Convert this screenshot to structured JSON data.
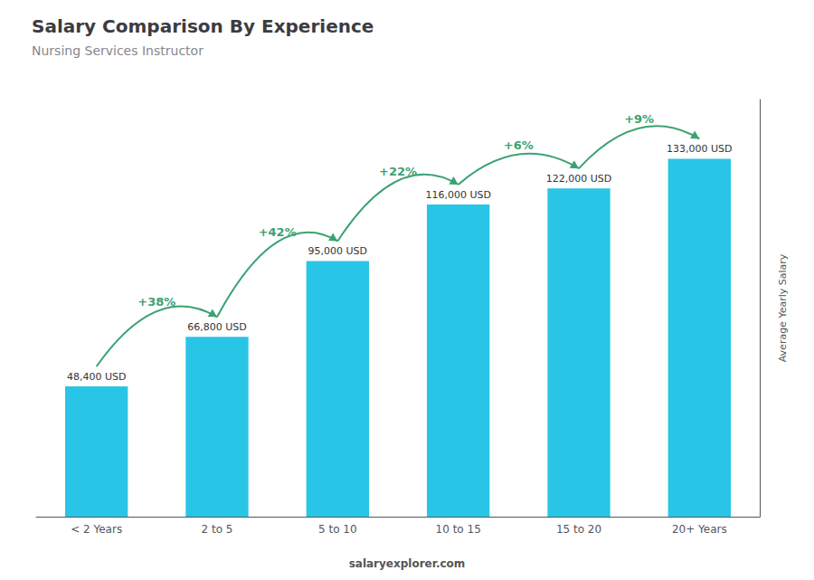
{
  "chart_data": {
    "type": "bar",
    "title": "Salary Comparison By Experience",
    "subtitle": "Nursing Services Instructor",
    "categories": [
      "< 2 Years",
      "2 to 5",
      "5 to 10",
      "10 to 15",
      "15 to 20",
      "20+ Years"
    ],
    "values": [
      48400,
      66800,
      95000,
      116000,
      122000,
      133000
    ],
    "value_labels": [
      "48,400 USD",
      "66,800 USD",
      "95,000 USD",
      "116,000 USD",
      "122,000 USD",
      "133,000 USD"
    ],
    "data_labels": true,
    "annotations": [
      "+38%",
      "+42%",
      "+22%",
      "+6%",
      "+9%"
    ],
    "ylabel": "Average Yearly Salary",
    "footer": "salaryexplorer.com",
    "color": "#29c5e6",
    "ylim": [
      0,
      155000
    ],
    "tick_labels": "x",
    "grid": false
  }
}
